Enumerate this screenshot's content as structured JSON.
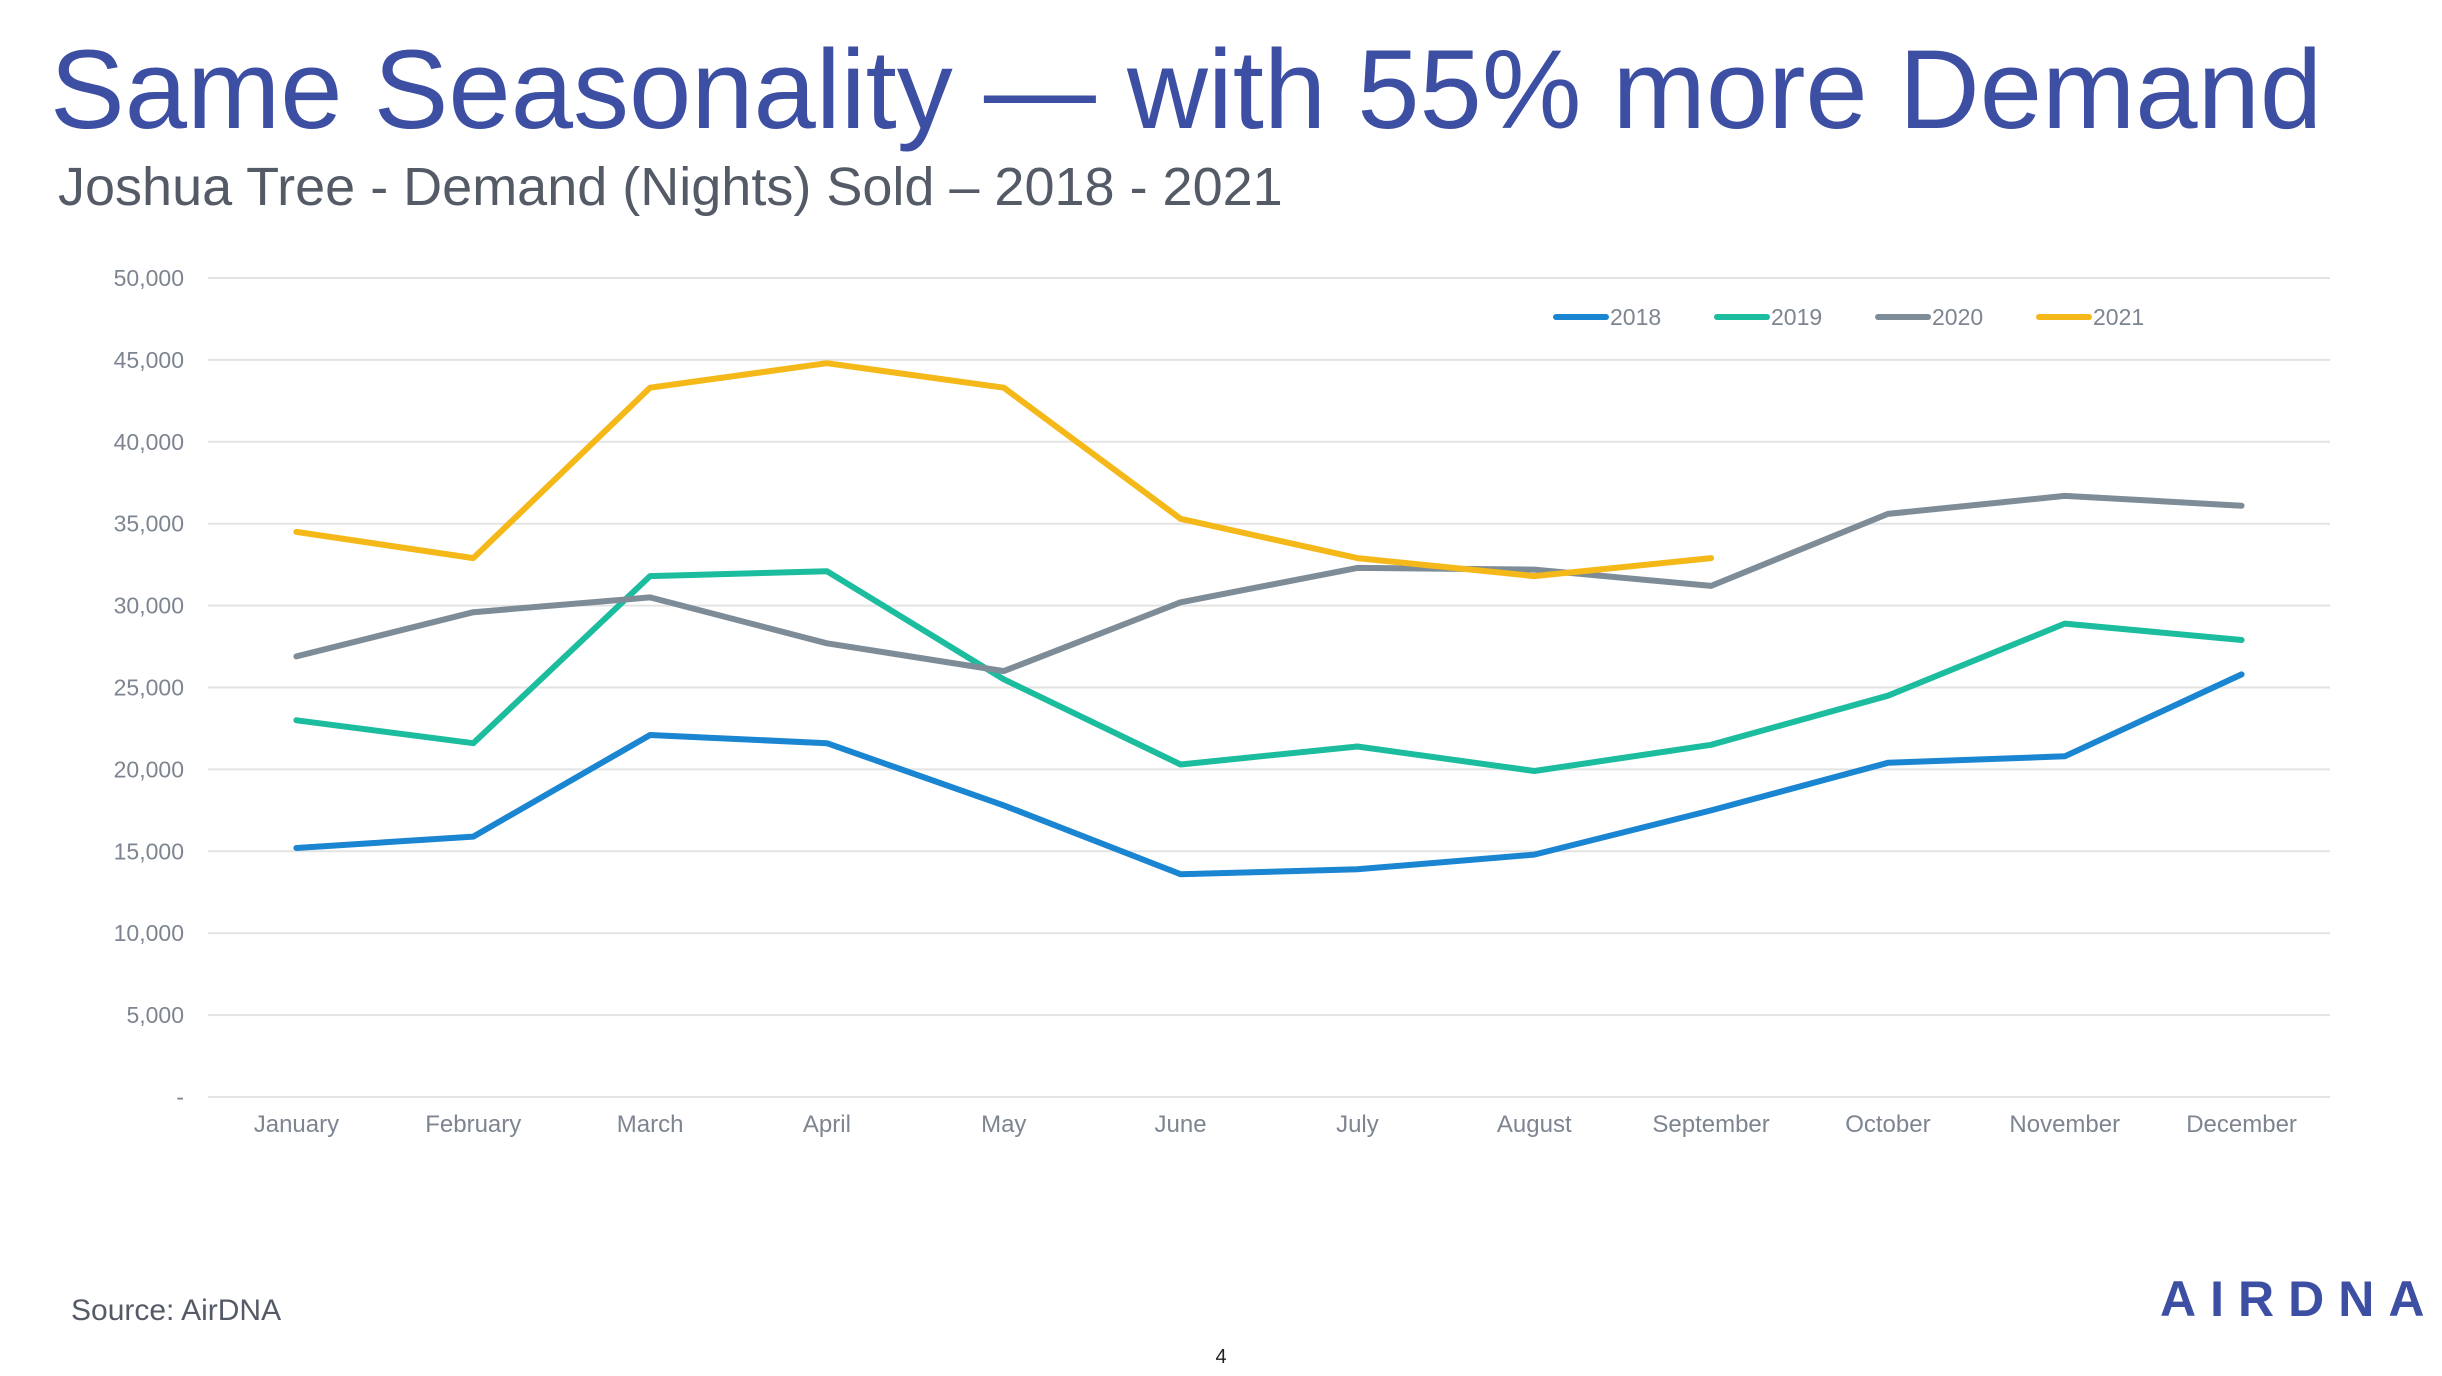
{
  "slide": {
    "title": "Same Seasonality — with 55% more Demand",
    "subtitle": "Joshua Tree - Demand (Nights) Sold – 2018 - 2021",
    "source": "Source: AirDNA",
    "logo": "AIRDNA",
    "page_number": "4"
  },
  "colors": {
    "title": "#3d4fa3",
    "grid": "#e3e3e3",
    "tick_text": "#7d8591"
  },
  "chart_data": {
    "type": "line",
    "title": "Joshua Tree - Demand (Nights) Sold – 2018 - 2021",
    "xlabel": "",
    "ylabel": "",
    "categories": [
      "January",
      "February",
      "March",
      "April",
      "May",
      "June",
      "July",
      "August",
      "September",
      "October",
      "November",
      "December"
    ],
    "ylim": [
      0,
      50000
    ],
    "yticks": [
      0,
      5000,
      10000,
      15000,
      20000,
      25000,
      30000,
      35000,
      40000,
      45000,
      50000
    ],
    "ytick_labels": [
      "-",
      "5,000",
      "10,000",
      "15,000",
      "20,000",
      "25,000",
      "30,000",
      "35,000",
      "40,000",
      "45,000",
      "50,000"
    ],
    "grid": true,
    "legend_position": "top-right",
    "series": [
      {
        "name": "2018",
        "color": "#1a85d1",
        "values": [
          15200,
          15900,
          22100,
          21600,
          17800,
          13600,
          13900,
          14800,
          17500,
          20400,
          20800,
          25800
        ]
      },
      {
        "name": "2019",
        "color": "#1cbc9f",
        "values": [
          23000,
          21600,
          31800,
          32100,
          25500,
          20300,
          21400,
          19900,
          21500,
          24500,
          28900,
          27900
        ]
      },
      {
        "name": "2020",
        "color": "#7d8c97",
        "values": [
          26900,
          29600,
          30500,
          27700,
          26000,
          30200,
          32300,
          32200,
          31200,
          35600,
          36700,
          36100
        ]
      },
      {
        "name": "2021",
        "color": "#f5b819",
        "values": [
          34500,
          32900,
          43300,
          44800,
          43300,
          35300,
          32900,
          31800,
          32900,
          null,
          null,
          null
        ]
      }
    ]
  }
}
